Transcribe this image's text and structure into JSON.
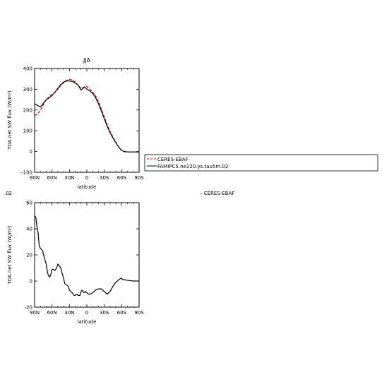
{
  "chart_data": [
    {
      "type": "line",
      "title": "JJA",
      "xlabel": "latitude",
      "ylabel": "TOA net SW flux (W/m²)",
      "x_ticks": [
        "90N",
        "60N",
        "30N",
        "0",
        "30S",
        "60S",
        "90S"
      ],
      "y_ticks": [
        "400",
        "300",
        "200",
        "100",
        "0",
        "-100"
      ],
      "xlim": [
        90,
        -90
      ],
      "ylim": [
        -100,
        400
      ],
      "series": [
        {
          "name": "CERES-EBAF",
          "color": "#dd0000",
          "style": "dashed",
          "x": [
            90,
            85,
            80,
            75,
            70,
            65,
            60,
            55,
            50,
            45,
            40,
            35,
            30,
            25,
            20,
            15,
            10,
            5,
            2,
            0,
            -5,
            -10,
            -15,
            -20,
            -25,
            -30,
            -35,
            -40,
            -45,
            -50,
            -55,
            -60,
            -65,
            -70,
            -75,
            -80,
            -85,
            -90
          ],
          "values": [
            175,
            180,
            200,
            225,
            250,
            265,
            275,
            285,
            300,
            318,
            332,
            343,
            348,
            345,
            335,
            318,
            305,
            310,
            315,
            312,
            300,
            287,
            268,
            240,
            205,
            168,
            130,
            96,
            70,
            45,
            22,
            6,
            0,
            -1,
            -2,
            -2,
            -2,
            -2
          ]
        },
        {
          "name": "FAMIPC5.ne120.ys.tau5m.02",
          "color": "#000000",
          "style": "solid",
          "x": [
            90,
            85,
            80,
            75,
            70,
            65,
            60,
            55,
            50,
            45,
            40,
            35,
            30,
            25,
            20,
            15,
            10,
            5,
            2,
            0,
            -5,
            -10,
            -15,
            -20,
            -25,
            -30,
            -35,
            -40,
            -45,
            -50,
            -55,
            -60,
            -65,
            -70,
            -75,
            -80,
            -85,
            -90
          ],
          "values": [
            230,
            222,
            215,
            232,
            250,
            258,
            270,
            285,
            305,
            322,
            335,
            340,
            340,
            338,
            330,
            320,
            296,
            308,
            306,
            300,
            292,
            280,
            260,
            230,
            195,
            158,
            122,
            90,
            65,
            42,
            20,
            5,
            -1,
            -2,
            -2,
            -2,
            -2,
            -2
          ]
        }
      ]
    },
    {
      "type": "line",
      "title": "",
      "xlabel": "latitude",
      "ylabel": "TOA net SW flux (W/m²)",
      "x_ticks": [
        "90N",
        "60N",
        "30N",
        "0",
        "30S",
        "60S",
        "90S"
      ],
      "y_ticks": [
        "60",
        "40",
        "20",
        "0",
        "-20"
      ],
      "xlim": [
        90,
        -90
      ],
      "ylim": [
        -20,
        60
      ],
      "series": [
        {
          "color": "#000000",
          "style": "solid",
          "x": [
            90,
            88,
            86,
            84,
            82,
            80,
            78,
            76,
            74,
            72,
            70,
            68,
            66,
            64,
            62,
            60,
            58,
            55,
            52,
            50,
            48,
            45,
            42,
            40,
            38,
            35,
            32,
            30,
            28,
            25,
            22,
            20,
            18,
            15,
            12,
            10,
            8,
            5,
            2,
            0,
            -3,
            -6,
            -10,
            -15,
            -20,
            -25,
            -30,
            -35,
            -40,
            -45,
            -50,
            -55,
            -58,
            -60,
            -62,
            -65,
            -70,
            -75,
            -80,
            -85,
            -90
          ],
          "values": [
            50,
            49,
            42,
            37,
            27,
            25,
            24,
            23,
            19,
            16,
            13,
            7,
            4,
            3,
            5,
            9,
            9,
            8,
            10,
            13,
            12,
            10,
            5,
            2,
            -2,
            -3,
            -4,
            -7,
            -8,
            -9,
            -11,
            -11,
            -10,
            -11,
            -11,
            -8,
            -7,
            -9,
            -8,
            -9,
            -10,
            -10,
            -9,
            -7,
            -6,
            -6,
            -8,
            -10,
            -8,
            -4,
            -1,
            1,
            2,
            2,
            1,
            1,
            0.5,
            0.3,
            0,
            0,
            0
          ]
        }
      ]
    }
  ],
  "legend": {
    "items": [
      "CERES-EBAF",
      "FAMIPC5.ne120.ys.tau5m.02"
    ]
  },
  "fragments": {
    "left_text": ".02",
    "right_text": "– CERES-EBAF"
  }
}
